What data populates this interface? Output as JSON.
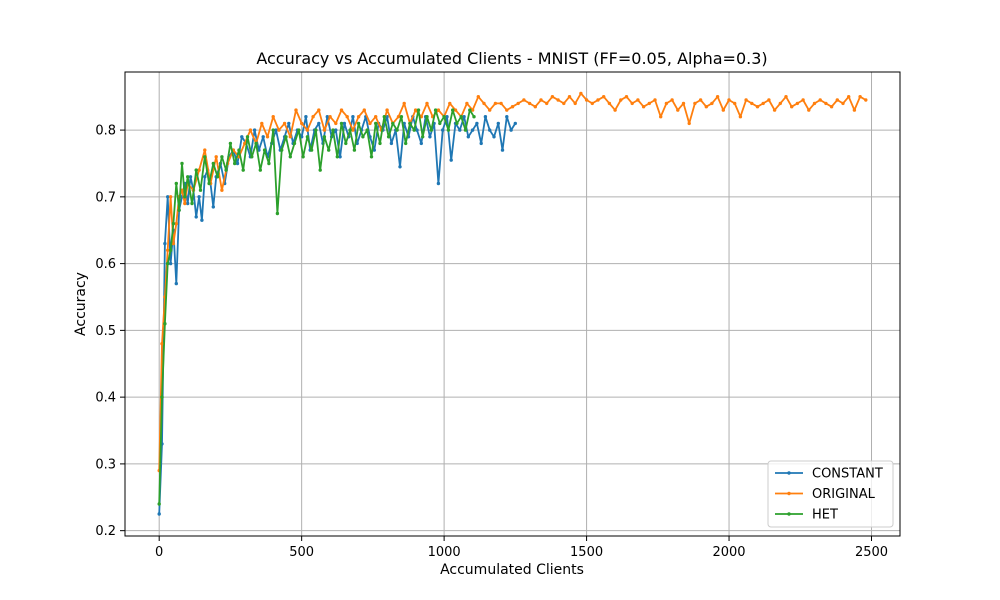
{
  "chart_data": {
    "type": "line",
    "title": "Accuracy vs Accumulated Clients - MNIST (FF=0.05, Alpha=0.3)",
    "xlabel": "Accumulated Clients",
    "ylabel": "Accuracy",
    "xlim": [
      -120,
      2600
    ],
    "ylim": [
      0.192,
      0.887
    ],
    "xticks": [
      0,
      500,
      1000,
      1500,
      2000,
      2500
    ],
    "yticks": [
      0.2,
      0.3,
      0.4,
      0.5,
      0.6,
      0.7,
      0.8
    ],
    "ytick_labels": [
      "0.2",
      "0.3",
      "0.4",
      "0.5",
      "0.6",
      "0.7",
      "0.8"
    ],
    "grid": true,
    "legend_position": "lower-right",
    "series": [
      {
        "name": "CONSTANT",
        "color": "#1f77b4",
        "x": [
          0,
          10,
          20,
          30,
          40,
          50,
          60,
          70,
          80,
          90,
          100,
          110,
          120,
          130,
          140,
          150,
          160,
          170,
          180,
          190,
          200,
          215,
          230,
          245,
          260,
          275,
          290,
          305,
          320,
          335,
          350,
          365,
          380,
          395,
          410,
          425,
          440,
          455,
          470,
          485,
          500,
          515,
          530,
          545,
          560,
          575,
          590,
          605,
          620,
          635,
          650,
          665,
          680,
          695,
          710,
          725,
          740,
          755,
          770,
          785,
          800,
          815,
          830,
          845,
          860,
          875,
          890,
          905,
          920,
          935,
          950,
          965,
          980,
          995,
          1010,
          1025,
          1040,
          1055,
          1070,
          1085,
          1100,
          1115,
          1130,
          1145,
          1160,
          1175,
          1190,
          1205,
          1220,
          1235,
          1250
        ],
        "y": [
          0.225,
          0.33,
          0.63,
          0.7,
          0.6,
          0.65,
          0.57,
          0.68,
          0.7,
          0.72,
          0.69,
          0.73,
          0.71,
          0.67,
          0.7,
          0.665,
          0.73,
          0.74,
          0.72,
          0.685,
          0.73,
          0.75,
          0.72,
          0.76,
          0.77,
          0.75,
          0.79,
          0.78,
          0.76,
          0.8,
          0.77,
          0.79,
          0.76,
          0.78,
          0.8,
          0.77,
          0.79,
          0.81,
          0.78,
          0.8,
          0.79,
          0.82,
          0.77,
          0.8,
          0.81,
          0.78,
          0.82,
          0.79,
          0.8,
          0.76,
          0.81,
          0.79,
          0.82,
          0.78,
          0.8,
          0.82,
          0.79,
          0.77,
          0.81,
          0.8,
          0.82,
          0.78,
          0.8,
          0.745,
          0.81,
          0.79,
          0.82,
          0.8,
          0.78,
          0.82,
          0.79,
          0.81,
          0.72,
          0.8,
          0.82,
          0.755,
          0.81,
          0.8,
          0.82,
          0.79,
          0.8,
          0.81,
          0.78,
          0.82,
          0.8,
          0.79,
          0.81,
          0.77,
          0.82,
          0.8,
          0.81
        ]
      },
      {
        "name": "ORIGINAL",
        "color": "#ff7f0e",
        "x": [
          0,
          10,
          20,
          30,
          40,
          50,
          60,
          70,
          80,
          90,
          100,
          120,
          140,
          160,
          180,
          200,
          220,
          240,
          260,
          280,
          300,
          320,
          340,
          360,
          380,
          400,
          420,
          440,
          460,
          480,
          500,
          520,
          540,
          560,
          580,
          600,
          620,
          640,
          660,
          680,
          700,
          720,
          740,
          760,
          780,
          800,
          820,
          840,
          860,
          880,
          900,
          920,
          940,
          960,
          980,
          1000,
          1020,
          1040,
          1060,
          1080,
          1100,
          1120,
          1140,
          1160,
          1180,
          1200,
          1220,
          1240,
          1260,
          1280,
          1300,
          1320,
          1340,
          1360,
          1380,
          1400,
          1420,
          1440,
          1460,
          1480,
          1500,
          1520,
          1540,
          1560,
          1580,
          1600,
          1620,
          1640,
          1660,
          1680,
          1700,
          1720,
          1740,
          1760,
          1780,
          1800,
          1820,
          1840,
          1860,
          1880,
          1900,
          1920,
          1940,
          1960,
          1980,
          2000,
          2020,
          2040,
          2060,
          2080,
          2100,
          2120,
          2140,
          2160,
          2180,
          2200,
          2220,
          2240,
          2260,
          2280,
          2300,
          2320,
          2340,
          2360,
          2380,
          2400,
          2420,
          2440,
          2460,
          2480
        ],
        "y": [
          0.29,
          0.48,
          0.55,
          0.62,
          0.7,
          0.63,
          0.66,
          0.7,
          0.71,
          0.69,
          0.72,
          0.71,
          0.74,
          0.77,
          0.72,
          0.76,
          0.71,
          0.75,
          0.77,
          0.76,
          0.78,
          0.8,
          0.78,
          0.81,
          0.79,
          0.82,
          0.8,
          0.81,
          0.79,
          0.83,
          0.81,
          0.8,
          0.82,
          0.83,
          0.8,
          0.82,
          0.81,
          0.83,
          0.82,
          0.8,
          0.82,
          0.83,
          0.81,
          0.82,
          0.8,
          0.83,
          0.81,
          0.82,
          0.84,
          0.81,
          0.83,
          0.82,
          0.84,
          0.82,
          0.83,
          0.82,
          0.84,
          0.83,
          0.82,
          0.84,
          0.83,
          0.85,
          0.84,
          0.83,
          0.84,
          0.84,
          0.83,
          0.835,
          0.84,
          0.845,
          0.84,
          0.835,
          0.845,
          0.84,
          0.85,
          0.845,
          0.84,
          0.85,
          0.84,
          0.855,
          0.845,
          0.84,
          0.845,
          0.85,
          0.84,
          0.83,
          0.845,
          0.85,
          0.84,
          0.845,
          0.835,
          0.84,
          0.845,
          0.82,
          0.84,
          0.845,
          0.83,
          0.84,
          0.81,
          0.84,
          0.845,
          0.835,
          0.84,
          0.85,
          0.83,
          0.845,
          0.84,
          0.82,
          0.845,
          0.84,
          0.835,
          0.84,
          0.845,
          0.83,
          0.84,
          0.85,
          0.835,
          0.84,
          0.845,
          0.83,
          0.84,
          0.845,
          0.84,
          0.835,
          0.845,
          0.84,
          0.85,
          0.83,
          0.85,
          0.845
        ],
        "ytick_labels": []
      },
      {
        "name": "HET",
        "color": "#2ca02c",
        "x": [
          0,
          10,
          20,
          30,
          40,
          50,
          60,
          70,
          80,
          90,
          100,
          115,
          130,
          145,
          160,
          175,
          190,
          205,
          220,
          235,
          250,
          265,
          280,
          295,
          310,
          325,
          340,
          355,
          370,
          385,
          400,
          415,
          430,
          445,
          460,
          475,
          490,
          505,
          520,
          535,
          550,
          565,
          580,
          595,
          610,
          625,
          640,
          655,
          670,
          685,
          700,
          715,
          730,
          745,
          760,
          775,
          790,
          805,
          820,
          835,
          850,
          865,
          880,
          895,
          910,
          925,
          940,
          955,
          970,
          985,
          1000,
          1015,
          1030,
          1045,
          1060,
          1075,
          1090,
          1105
        ],
        "y": [
          0.24,
          0.4,
          0.51,
          0.6,
          0.62,
          0.66,
          0.72,
          0.68,
          0.75,
          0.7,
          0.73,
          0.69,
          0.74,
          0.71,
          0.76,
          0.72,
          0.75,
          0.73,
          0.76,
          0.74,
          0.78,
          0.75,
          0.77,
          0.74,
          0.79,
          0.76,
          0.78,
          0.74,
          0.77,
          0.75,
          0.8,
          0.675,
          0.77,
          0.79,
          0.76,
          0.78,
          0.8,
          0.76,
          0.79,
          0.77,
          0.8,
          0.74,
          0.79,
          0.77,
          0.8,
          0.76,
          0.81,
          0.78,
          0.8,
          0.77,
          0.81,
          0.79,
          0.8,
          0.76,
          0.81,
          0.78,
          0.82,
          0.79,
          0.81,
          0.8,
          0.82,
          0.78,
          0.81,
          0.8,
          0.83,
          0.79,
          0.82,
          0.8,
          0.83,
          0.81,
          0.82,
          0.8,
          0.83,
          0.81,
          0.82,
          0.8,
          0.83,
          0.82
        ]
      }
    ]
  }
}
